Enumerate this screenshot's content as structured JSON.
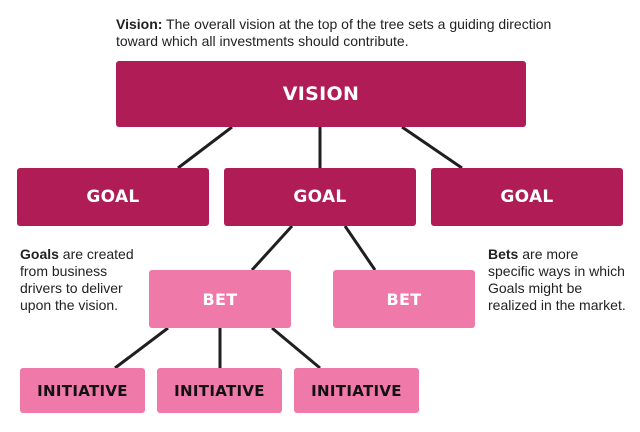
{
  "colors": {
    "dark": "#b01c56",
    "light": "#ef79a8",
    "connector": "#1f1f1f"
  },
  "vision_note": {
    "lead": "Vision:",
    "text": " The overall vision at the top of the tree sets a guiding direction toward which all investments should contribute."
  },
  "vision": {
    "label": "VISION"
  },
  "goals": [
    {
      "label": "GOAL"
    },
    {
      "label": "GOAL"
    },
    {
      "label": "GOAL"
    }
  ],
  "goals_note": {
    "lead": "Goals",
    "text": " are created from business drivers to deliver upon the vision."
  },
  "bets": [
    {
      "label": "BET"
    },
    {
      "label": "BET"
    }
  ],
  "bets_note": {
    "lead": "Bets",
    "text": " are more specific ways in which Goals might be realized in the market."
  },
  "initiatives": [
    {
      "label": "INITIATIVE"
    },
    {
      "label": "INITIATIVE"
    },
    {
      "label": "INITIATIVE"
    }
  ]
}
